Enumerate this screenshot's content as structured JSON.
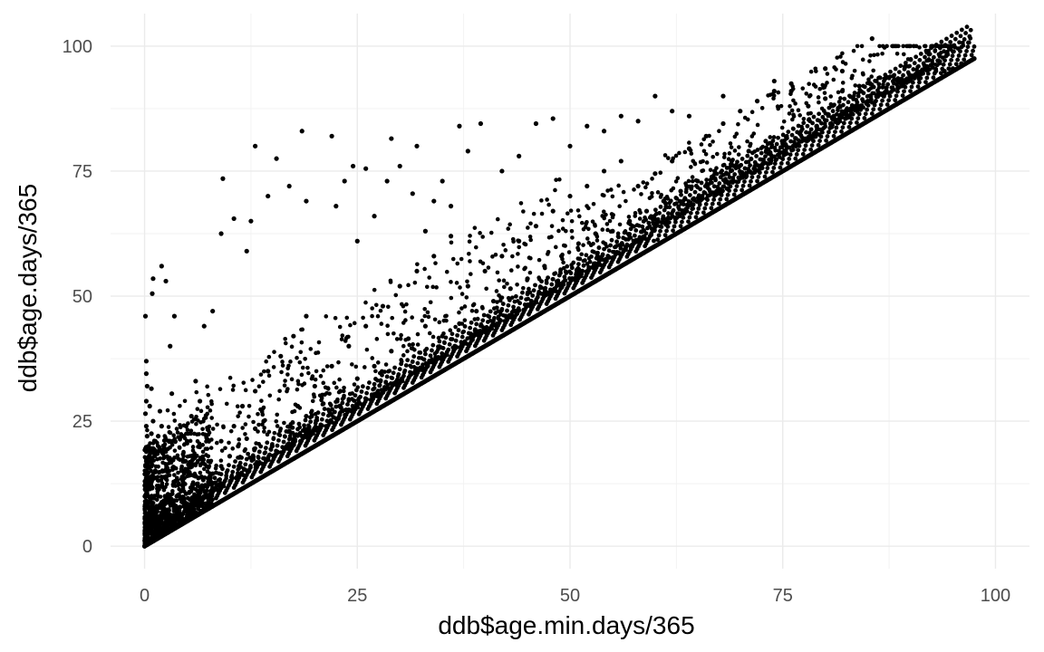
{
  "chart_data": {
    "type": "scatter",
    "title": "",
    "xlabel": "ddb$age.min.days/365",
    "ylabel": "ddb$age.days/365",
    "xlim": [
      -4,
      104
    ],
    "ylim": [
      -4.5,
      106.5
    ],
    "x_ticks": [
      0,
      25,
      50,
      75,
      100
    ],
    "y_ticks": [
      0,
      25,
      50,
      75,
      100
    ],
    "x_tick_labels": [
      "0",
      "25",
      "50",
      "75",
      "100"
    ],
    "y_tick_labels": [
      "0",
      "25",
      "50",
      "75",
      "100"
    ],
    "grid": true,
    "legend": "none",
    "point_color": "#000000",
    "series": [
      {
        "points": [
          [
            0.0,
            0.0
          ],
          [
            0.05,
            0.5
          ],
          [
            0.1,
            1.2
          ],
          [
            0.05,
            2.5
          ],
          [
            0.1,
            4.0
          ],
          [
            0.15,
            6.0
          ],
          [
            0.1,
            8.5
          ],
          [
            0.2,
            10.5
          ],
          [
            0.1,
            12.5
          ],
          [
            0.15,
            14.5
          ],
          [
            0.2,
            17.0
          ],
          [
            0.1,
            19.5
          ],
          [
            0.3,
            22.0
          ],
          [
            0.2,
            24.0
          ],
          [
            0.1,
            26.5
          ],
          [
            0.2,
            29.0
          ],
          [
            0.3,
            32.0
          ],
          [
            0.2,
            34.5
          ],
          [
            0.2,
            37.0
          ],
          [
            0.1,
            46.0
          ],
          [
            0.5,
            3.0
          ],
          [
            0.6,
            6.5
          ],
          [
            0.7,
            9.5
          ],
          [
            0.5,
            13.0
          ],
          [
            0.8,
            16.0
          ],
          [
            0.6,
            19.0
          ],
          [
            0.8,
            22.5
          ],
          [
            1.0,
            25.0
          ],
          [
            0.6,
            28.0
          ],
          [
            0.8,
            31.5
          ],
          [
            0.9,
            50.5
          ],
          [
            1.0,
            53.5
          ],
          [
            1.2,
            4.5
          ],
          [
            1.4,
            8.0
          ],
          [
            1.5,
            11.5
          ],
          [
            1.3,
            15.0
          ],
          [
            1.5,
            18.5
          ],
          [
            1.6,
            22.0
          ],
          [
            1.8,
            27.0
          ],
          [
            2.0,
            24.0
          ],
          [
            2.0,
            56.0
          ],
          [
            2.5,
            53.0
          ],
          [
            2.2,
            7.0
          ],
          [
            2.4,
            10.0
          ],
          [
            2.6,
            14.0
          ],
          [
            2.8,
            17.5
          ],
          [
            3.0,
            21.0
          ],
          [
            3.2,
            30.5
          ],
          [
            3.5,
            46.0
          ],
          [
            3.0,
            40.0
          ],
          [
            4.0,
            6.0
          ],
          [
            4.2,
            9.5
          ],
          [
            4.5,
            13.0
          ],
          [
            4.8,
            17.0
          ],
          [
            5.0,
            21.0
          ],
          [
            5.5,
            26.0
          ],
          [
            6.0,
            33.0
          ],
          [
            6.5,
            29.0
          ],
          [
            7.0,
            44.0
          ],
          [
            8.0,
            47.0
          ],
          [
            5.0,
            8.0
          ],
          [
            6.0,
            10.0
          ],
          [
            7.0,
            12.0
          ],
          [
            8.0,
            14.5
          ],
          [
            9.0,
            16.0
          ],
          [
            10.0,
            18.0
          ],
          [
            11.0,
            20.0
          ],
          [
            12.0,
            21.5
          ],
          [
            13.0,
            23.5
          ],
          [
            14.0,
            25.0
          ],
          [
            6.0,
            14.0
          ],
          [
            7.5,
            17.0
          ],
          [
            9.0,
            21.0
          ],
          [
            10.5,
            24.0
          ],
          [
            11.5,
            28.0
          ],
          [
            13.0,
            31.0
          ],
          [
            14.5,
            35.0
          ],
          [
            16.0,
            38.0
          ],
          [
            17.5,
            42.0
          ],
          [
            19.0,
            46.0
          ],
          [
            9.0,
            62.5
          ],
          [
            9.2,
            73.5
          ],
          [
            10.5,
            65.5
          ],
          [
            12.0,
            59.0
          ],
          [
            12.5,
            65.0
          ],
          [
            13.0,
            80.0
          ],
          [
            14.5,
            70.0
          ],
          [
            15.5,
            77.5
          ],
          [
            17.0,
            72.0
          ],
          [
            18.5,
            83.0
          ],
          [
            19.0,
            69.0
          ],
          [
            22.0,
            82.0
          ],
          [
            22.5,
            68.0
          ],
          [
            23.5,
            73.0
          ],
          [
            24.5,
            76.0
          ],
          [
            25.0,
            61.0
          ],
          [
            26.0,
            75.5
          ],
          [
            27.0,
            66.0
          ],
          [
            28.5,
            73.0
          ],
          [
            29.0,
            81.5
          ],
          [
            30.0,
            76.0
          ],
          [
            31.5,
            70.5
          ],
          [
            32.0,
            80.0
          ],
          [
            33.0,
            63.0
          ],
          [
            34.0,
            69.0
          ],
          [
            35.0,
            73.0
          ],
          [
            36.0,
            68.0
          ],
          [
            37.0,
            84.0
          ],
          [
            38.0,
            79.0
          ],
          [
            39.5,
            84.5
          ],
          [
            15.0,
            20.0
          ],
          [
            17.0,
            23.0
          ],
          [
            19.0,
            26.0
          ],
          [
            21.0,
            28.5
          ],
          [
            23.0,
            31.0
          ],
          [
            25.0,
            33.5
          ],
          [
            27.0,
            36.0
          ],
          [
            29.0,
            39.0
          ],
          [
            31.0,
            41.5
          ],
          [
            33.0,
            44.0
          ],
          [
            18.0,
            28.0
          ],
          [
            20.0,
            32.0
          ],
          [
            22.0,
            36.0
          ],
          [
            24.0,
            40.0
          ],
          [
            26.0,
            44.0
          ],
          [
            28.0,
            48.0
          ],
          [
            30.0,
            52.0
          ],
          [
            32.0,
            55.0
          ],
          [
            34.0,
            58.0
          ],
          [
            36.0,
            62.0
          ],
          [
            35.0,
            42.0
          ],
          [
            37.0,
            44.5
          ],
          [
            39.0,
            47.0
          ],
          [
            41.0,
            49.0
          ],
          [
            43.0,
            51.5
          ],
          [
            45.0,
            53.5
          ],
          [
            47.0,
            56.0
          ],
          [
            49.0,
            58.0
          ],
          [
            51.0,
            60.5
          ],
          [
            53.0,
            62.5
          ],
          [
            38.0,
            52.0
          ],
          [
            40.0,
            55.0
          ],
          [
            42.0,
            58.0
          ],
          [
            44.0,
            61.0
          ],
          [
            46.0,
            64.0
          ],
          [
            48.0,
            67.0
          ],
          [
            50.0,
            70.0
          ],
          [
            52.0,
            72.0
          ],
          [
            54.0,
            75.0
          ],
          [
            56.0,
            77.0
          ],
          [
            42.0,
            75.0
          ],
          [
            44.0,
            78.0
          ],
          [
            46.0,
            84.5
          ],
          [
            48.0,
            85.5
          ],
          [
            50.0,
            80.0
          ],
          [
            52.0,
            84.0
          ],
          [
            54.0,
            83.0
          ],
          [
            56.0,
            86.0
          ],
          [
            58.0,
            85.0
          ],
          [
            60.0,
            90.0
          ],
          [
            55.0,
            63.0
          ],
          [
            57.0,
            65.0
          ],
          [
            59.0,
            67.0
          ],
          [
            61.0,
            69.0
          ],
          [
            63.0,
            71.0
          ],
          [
            65.0,
            73.0
          ],
          [
            67.0,
            75.0
          ],
          [
            69.0,
            77.0
          ],
          [
            71.0,
            79.0
          ],
          [
            73.0,
            81.0
          ],
          [
            58.0,
            72.0
          ],
          [
            60.0,
            74.5
          ],
          [
            62.0,
            77.0
          ],
          [
            64.0,
            79.5
          ],
          [
            66.0,
            82.0
          ],
          [
            68.0,
            84.5
          ],
          [
            70.0,
            87.0
          ],
          [
            72.0,
            89.0
          ],
          [
            74.0,
            91.0
          ],
          [
            76.0,
            92.5
          ],
          [
            62.0,
            87.0
          ],
          [
            64.0,
            86.0
          ],
          [
            68.0,
            90.0
          ],
          [
            74.0,
            93.0
          ],
          [
            76.0,
            91.0
          ],
          [
            80.0,
            95.5
          ],
          [
            82.0,
            95.0
          ],
          [
            85.5,
            101.5
          ],
          [
            89.5,
            96.0
          ],
          [
            90.5,
            94.0
          ],
          [
            75.0,
            80.5
          ],
          [
            77.0,
            82.5
          ],
          [
            79.0,
            84.0
          ],
          [
            81.0,
            86.0
          ],
          [
            83.0,
            87.5
          ],
          [
            85.0,
            89.0
          ],
          [
            87.0,
            90.5
          ],
          [
            89.0,
            92.0
          ],
          [
            91.0,
            93.5
          ],
          [
            93.0,
            95.0
          ],
          [
            78.0,
            88.0
          ],
          [
            80.0,
            89.5
          ],
          [
            82.0,
            91.0
          ],
          [
            84.0,
            92.0
          ],
          [
            86.0,
            93.0
          ],
          [
            88.0,
            94.0
          ],
          [
            94.0,
            95.0
          ],
          [
            95.0,
            95.5
          ],
          [
            96.0,
            96.5
          ],
          [
            97.5,
            97.5
          ]
        ]
      }
    ],
    "diagonal_band": {
      "x_start": 0,
      "x_end": 97.5
    }
  }
}
